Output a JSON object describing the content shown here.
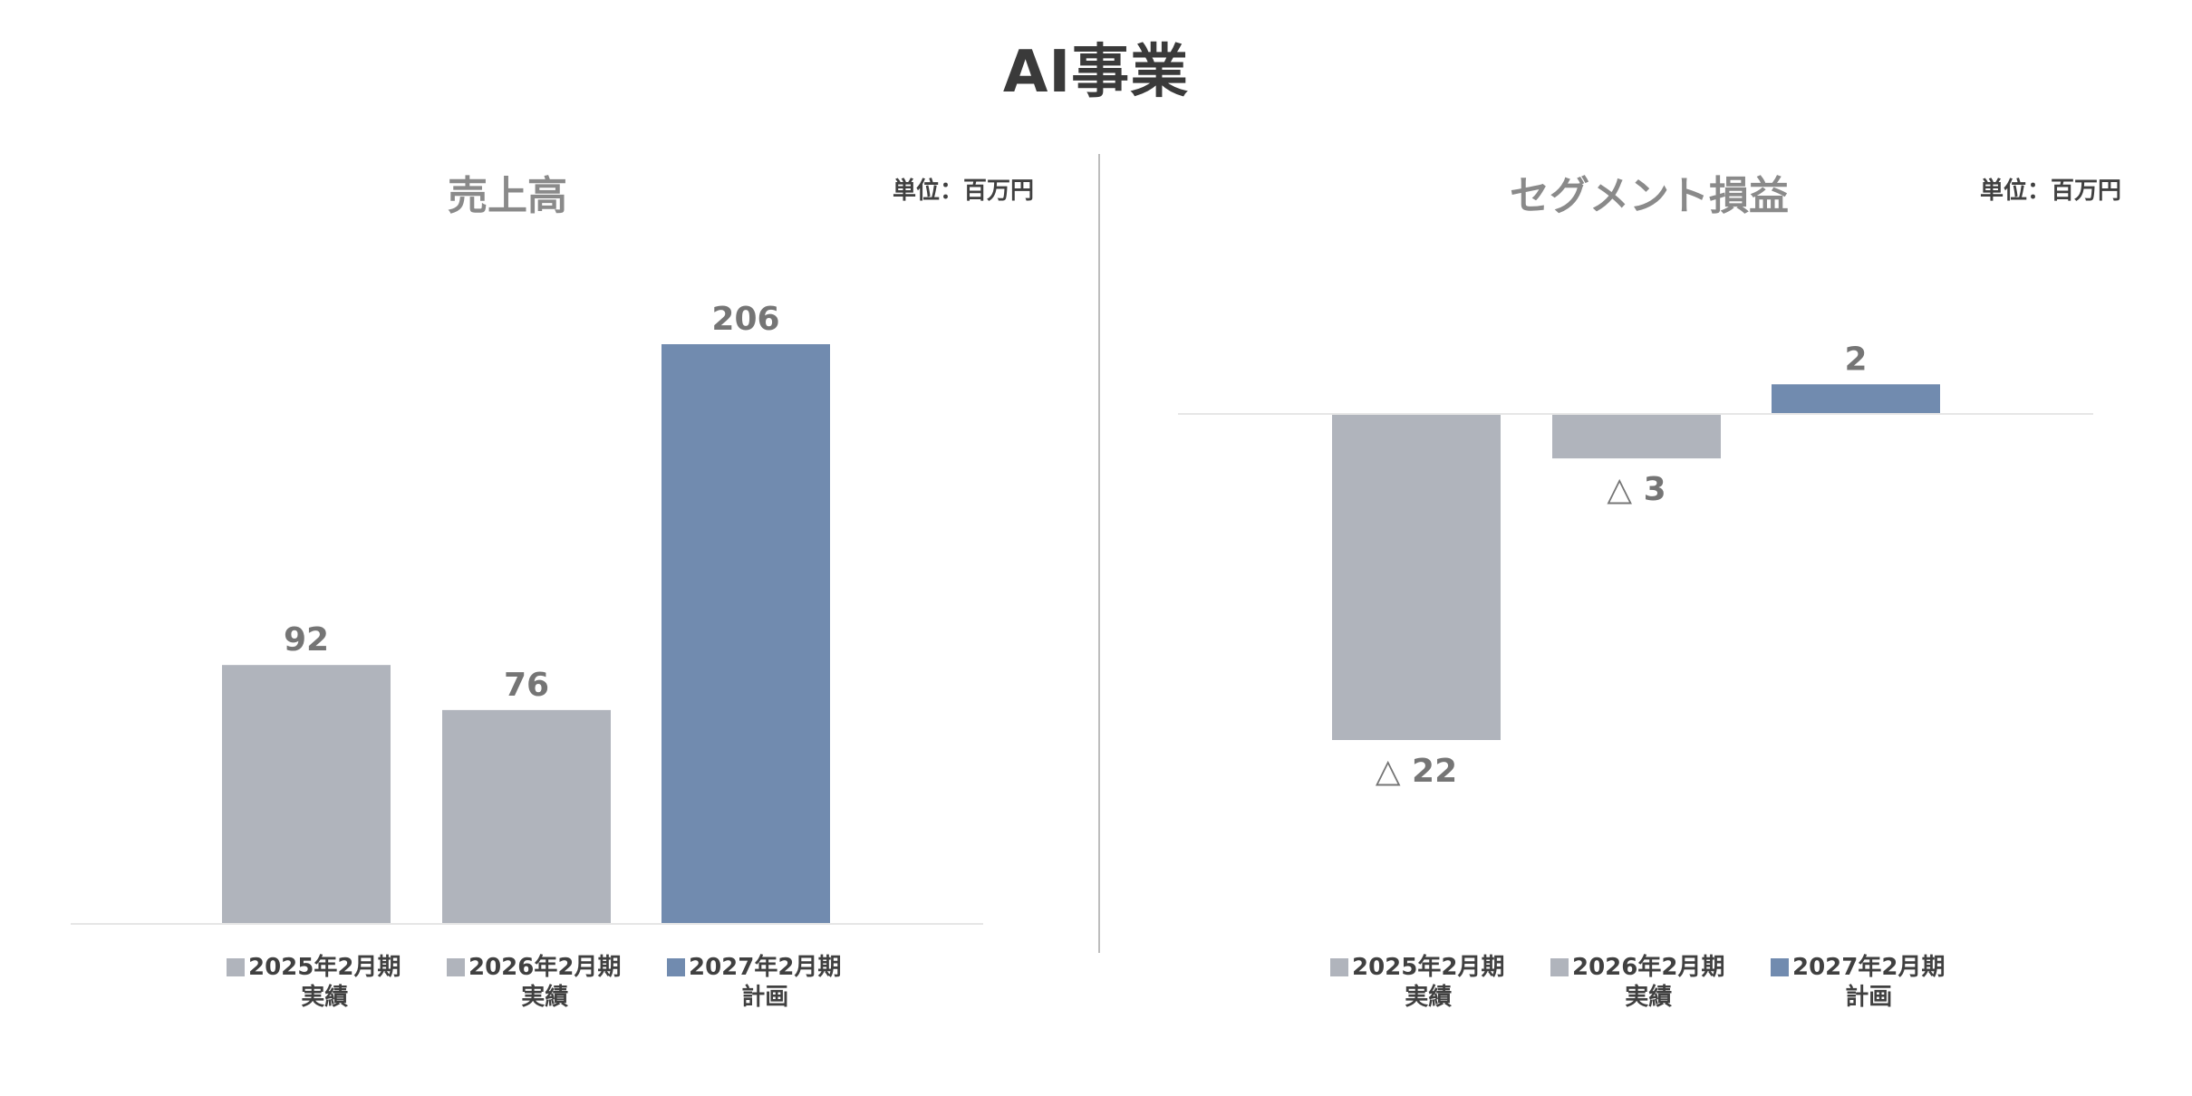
{
  "page": {
    "title": "AI事業"
  },
  "colors": {
    "actual": "#b0b4bc",
    "plan": "#718baf",
    "axis": "#e6e6e6",
    "divider": "#bdbdbd"
  },
  "chart_data": [
    {
      "type": "bar",
      "title": "売上高",
      "unit": "単位：百万円",
      "categories": [
        "2025年2月期 実績",
        "2026年2月期 実績",
        "2027年2月期 計画"
      ],
      "values": [
        92,
        76,
        206
      ],
      "value_labels": [
        "92",
        "76",
        "206"
      ],
      "bar_colors": [
        "#b0b4bc",
        "#b0b4bc",
        "#718baf"
      ],
      "ylim": [
        0,
        206
      ],
      "grid": false,
      "legend_position": "bottom",
      "legend": [
        {
          "line1": "2025年2月期",
          "line2": "実績",
          "color": "#b0b4bc"
        },
        {
          "line1": "2026年2月期",
          "line2": "実績",
          "color": "#b0b4bc"
        },
        {
          "line1": "2027年2月期",
          "line2": "計画",
          "color": "#718baf"
        }
      ]
    },
    {
      "type": "bar",
      "title": "セグメント損益",
      "unit": "単位：百万円",
      "categories": [
        "2025年2月期 実績",
        "2026年2月期 実績",
        "2027年2月期 計画"
      ],
      "values": [
        -22,
        -3,
        2
      ],
      "value_labels": [
        "△ 22",
        "△ 3",
        "2"
      ],
      "bar_colors": [
        "#b0b4bc",
        "#b0b4bc",
        "#718baf"
      ],
      "ylim": [
        -22,
        2
      ],
      "grid": false,
      "legend_position": "bottom",
      "legend": [
        {
          "line1": "2025年2月期",
          "line2": "実績",
          "color": "#b0b4bc"
        },
        {
          "line1": "2026年2月期",
          "line2": "実績",
          "color": "#b0b4bc"
        },
        {
          "line1": "2027年2月期",
          "line2": "計画",
          "color": "#718baf"
        }
      ]
    }
  ]
}
